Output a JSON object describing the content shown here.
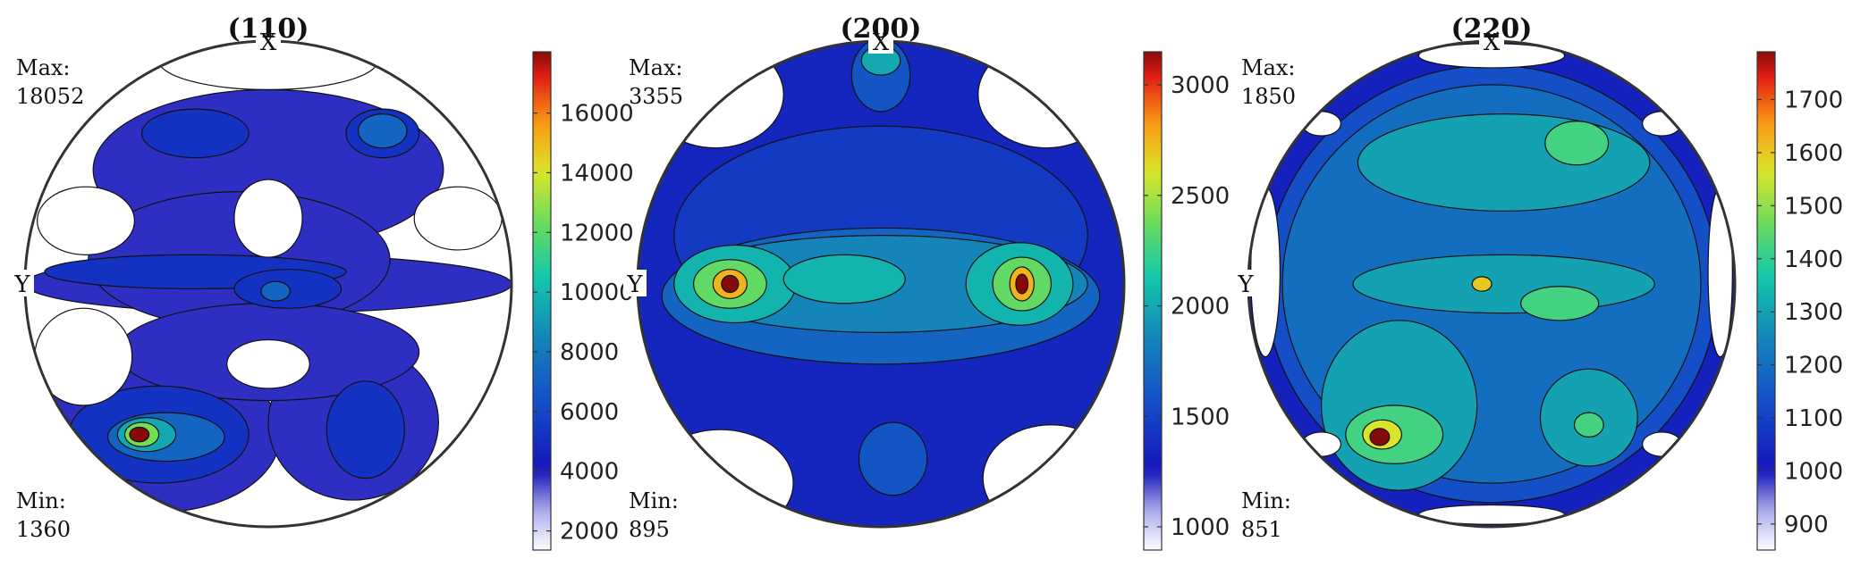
{
  "chart_data": [
    {
      "type": "contour",
      "title": "(110)",
      "max_label": "Max:",
      "max_value": "18052",
      "min_label": "Min:",
      "min_value": "1360",
      "axis_top": "X",
      "axis_left": "Y",
      "colorbar": {
        "min": 1360,
        "max": 18052,
        "ticks": [
          2000,
          4000,
          6000,
          8000,
          10000,
          12000,
          14000,
          16000
        ]
      },
      "blobs": [
        {
          "cx": 0.0,
          "cy": 0.47,
          "rx": 0.72,
          "ry": 0.33,
          "level": 3800
        },
        {
          "cx": 0.0,
          "cy": 0.0,
          "rx": 1.0,
          "ry": 0.12,
          "level": 3800
        },
        {
          "cx": -0.45,
          "cy": -0.62,
          "rx": 0.5,
          "ry": 0.32,
          "level": 3800
        },
        {
          "cx": 0.35,
          "cy": -0.57,
          "rx": 0.35,
          "ry": 0.32,
          "level": 3800
        },
        {
          "cx": -0.12,
          "cy": 0.1,
          "rx": 0.62,
          "ry": 0.28,
          "level": 3800
        },
        {
          "cx": 0.0,
          "cy": -0.28,
          "rx": 0.62,
          "ry": 0.2,
          "level": 3800
        },
        {
          "cx": -0.3,
          "cy": 0.62,
          "rx": 0.22,
          "ry": 0.1,
          "level": 5200
        },
        {
          "cx": 0.47,
          "cy": 0.62,
          "rx": 0.15,
          "ry": 0.1,
          "level": 5200
        },
        {
          "cx": -0.3,
          "cy": 0.05,
          "rx": 0.62,
          "ry": 0.07,
          "level": 5200
        },
        {
          "cx": 0.08,
          "cy": -0.02,
          "rx": 0.22,
          "ry": 0.08,
          "level": 5200
        },
        {
          "cx": -0.45,
          "cy": -0.62,
          "rx": 0.37,
          "ry": 0.2,
          "level": 5200
        },
        {
          "cx": 0.4,
          "cy": -0.6,
          "rx": 0.16,
          "ry": 0.2,
          "level": 5200
        },
        {
          "cx": 0.47,
          "cy": 0.63,
          "rx": 0.1,
          "ry": 0.07,
          "level": 7200
        },
        {
          "cx": -0.42,
          "cy": -0.63,
          "rx": 0.24,
          "ry": 0.1,
          "level": 7200
        },
        {
          "cx": 0.03,
          "cy": -0.03,
          "rx": 0.06,
          "ry": 0.04,
          "level": 7200
        },
        {
          "cx": -0.5,
          "cy": -0.62,
          "rx": 0.12,
          "ry": 0.07,
          "level": 9500
        },
        {
          "cx": -0.52,
          "cy": -0.62,
          "rx": 0.07,
          "ry": 0.05,
          "level": 12500
        },
        {
          "cx": -0.53,
          "cy": -0.62,
          "rx": 0.04,
          "ry": 0.03,
          "level": 18052
        }
      ],
      "holes": [
        {
          "cx": 0.0,
          "cy": 0.27,
          "rx": 0.14,
          "ry": 0.16
        },
        {
          "cx": 0.0,
          "cy": -0.33,
          "rx": 0.17,
          "ry": 0.1
        },
        {
          "cx": -0.75,
          "cy": 0.26,
          "rx": 0.2,
          "ry": 0.14
        },
        {
          "cx": 0.78,
          "cy": 0.27,
          "rx": 0.18,
          "ry": 0.13
        },
        {
          "cx": -0.76,
          "cy": -0.3,
          "rx": 0.2,
          "ry": 0.2
        },
        {
          "cx": 0.0,
          "cy": 0.92,
          "rx": 0.45,
          "ry": 0.12
        }
      ]
    },
    {
      "type": "contour",
      "title": "(200)",
      "max_label": "Max:",
      "max_value": "3355",
      "min_label": "Min:",
      "min_value": "895",
      "axis_top": "X",
      "axis_left": "Y",
      "colorbar": {
        "min": 895,
        "max": 3150,
        "ticks": [
          1000,
          1500,
          2000,
          2500,
          3000
        ]
      },
      "blobs": [
        {
          "cx": 0.0,
          "cy": 0.0,
          "rx": 1.0,
          "ry": 1.0,
          "level": 1350
        },
        {
          "cx": 0.0,
          "cy": 0.2,
          "rx": 0.85,
          "ry": 0.45,
          "level": 1450
        },
        {
          "cx": 0.0,
          "cy": 0.86,
          "rx": 0.12,
          "ry": 0.15,
          "level": 1600
        },
        {
          "cx": 0.05,
          "cy": -0.72,
          "rx": 0.14,
          "ry": 0.15,
          "level": 1600
        },
        {
          "cx": 0.0,
          "cy": -0.05,
          "rx": 0.9,
          "ry": 0.28,
          "level": 1680
        },
        {
          "cx": 0.0,
          "cy": 0.0,
          "rx": 0.85,
          "ry": 0.2,
          "level": 1850
        },
        {
          "cx": 0.0,
          "cy": 0.92,
          "rx": 0.08,
          "ry": 0.06,
          "level": 2000
        },
        {
          "cx": -0.6,
          "cy": 0.0,
          "rx": 0.25,
          "ry": 0.16,
          "level": 2050
        },
        {
          "cx": 0.57,
          "cy": 0.0,
          "rx": 0.22,
          "ry": 0.17,
          "level": 2050
        },
        {
          "cx": -0.15,
          "cy": 0.02,
          "rx": 0.25,
          "ry": 0.1,
          "level": 2050
        },
        {
          "cx": -0.62,
          "cy": 0.0,
          "rx": 0.15,
          "ry": 0.1,
          "level": 2350
        },
        {
          "cx": 0.58,
          "cy": 0.0,
          "rx": 0.12,
          "ry": 0.11,
          "level": 2350
        },
        {
          "cx": -0.62,
          "cy": 0.0,
          "rx": 0.07,
          "ry": 0.06,
          "level": 2750
        },
        {
          "cx": 0.58,
          "cy": 0.0,
          "rx": 0.05,
          "ry": 0.07,
          "level": 2750
        },
        {
          "cx": -0.62,
          "cy": 0.0,
          "rx": 0.035,
          "ry": 0.035,
          "level": 3355
        },
        {
          "cx": 0.58,
          "cy": 0.0,
          "rx": 0.025,
          "ry": 0.04,
          "level": 3355
        }
      ],
      "holes": [
        {
          "cx": -0.68,
          "cy": 0.78,
          "rx": 0.28,
          "ry": 0.22
        },
        {
          "cx": 0.68,
          "cy": 0.78,
          "rx": 0.28,
          "ry": 0.22
        },
        {
          "cx": -0.66,
          "cy": -0.82,
          "rx": 0.3,
          "ry": 0.22
        },
        {
          "cx": 0.7,
          "cy": -0.8,
          "rx": 0.28,
          "ry": 0.22
        }
      ]
    },
    {
      "type": "contour",
      "title": "(220)",
      "max_label": "Max:",
      "max_value": "1850",
      "min_label": "Min:",
      "min_value": "851",
      "axis_top": "X",
      "axis_left": "Y",
      "colorbar": {
        "min": 851,
        "max": 1790,
        "ticks": [
          900,
          1000,
          1100,
          1200,
          1300,
          1400,
          1500,
          1600,
          1700
        ]
      },
      "blobs": [
        {
          "cx": 0.0,
          "cy": 0.0,
          "rx": 1.0,
          "ry": 1.0,
          "level": 1030
        },
        {
          "cx": 0.0,
          "cy": 0.0,
          "rx": 0.93,
          "ry": 0.9,
          "level": 1130
        },
        {
          "cx": 0.0,
          "cy": 0.0,
          "rx": 0.86,
          "ry": 0.82,
          "level": 1200
        },
        {
          "cx": 0.05,
          "cy": 0.5,
          "rx": 0.6,
          "ry": 0.2,
          "level": 1300
        },
        {
          "cx": 0.05,
          "cy": 0.0,
          "rx": 0.62,
          "ry": 0.12,
          "level": 1300
        },
        {
          "cx": -0.38,
          "cy": -0.5,
          "rx": 0.32,
          "ry": 0.35,
          "level": 1300
        },
        {
          "cx": 0.4,
          "cy": -0.55,
          "rx": 0.2,
          "ry": 0.2,
          "level": 1300
        },
        {
          "cx": 0.35,
          "cy": 0.58,
          "rx": 0.13,
          "ry": 0.09,
          "level": 1420
        },
        {
          "cx": -0.4,
          "cy": -0.62,
          "rx": 0.2,
          "ry": 0.12,
          "level": 1420
        },
        {
          "cx": 0.28,
          "cy": -0.08,
          "rx": 0.16,
          "ry": 0.07,
          "level": 1420
        },
        {
          "cx": 0.4,
          "cy": -0.58,
          "rx": 0.06,
          "ry": 0.05,
          "level": 1420
        },
        {
          "cx": -0.45,
          "cy": -0.62,
          "rx": 0.08,
          "ry": 0.06,
          "level": 1560
        },
        {
          "cx": -0.04,
          "cy": 0.0,
          "rx": 0.04,
          "ry": 0.03,
          "level": 1600
        },
        {
          "cx": -0.46,
          "cy": -0.63,
          "rx": 0.04,
          "ry": 0.035,
          "level": 1790
        }
      ],
      "holes": [
        {
          "cx": -0.93,
          "cy": 0.05,
          "rx": 0.06,
          "ry": 0.35
        },
        {
          "cx": 0.94,
          "cy": 0.05,
          "rx": 0.05,
          "ry": 0.35
        },
        {
          "cx": 0.0,
          "cy": 0.94,
          "rx": 0.3,
          "ry": 0.05
        },
        {
          "cx": 0.0,
          "cy": -0.95,
          "rx": 0.3,
          "ry": 0.04
        },
        {
          "cx": -0.7,
          "cy": 0.66,
          "rx": 0.08,
          "ry": 0.05
        },
        {
          "cx": 0.7,
          "cy": 0.66,
          "rx": 0.08,
          "ry": 0.05
        },
        {
          "cx": -0.7,
          "cy": -0.66,
          "rx": 0.08,
          "ry": 0.05
        },
        {
          "cx": 0.7,
          "cy": -0.66,
          "rx": 0.08,
          "ry": 0.05
        }
      ]
    }
  ]
}
